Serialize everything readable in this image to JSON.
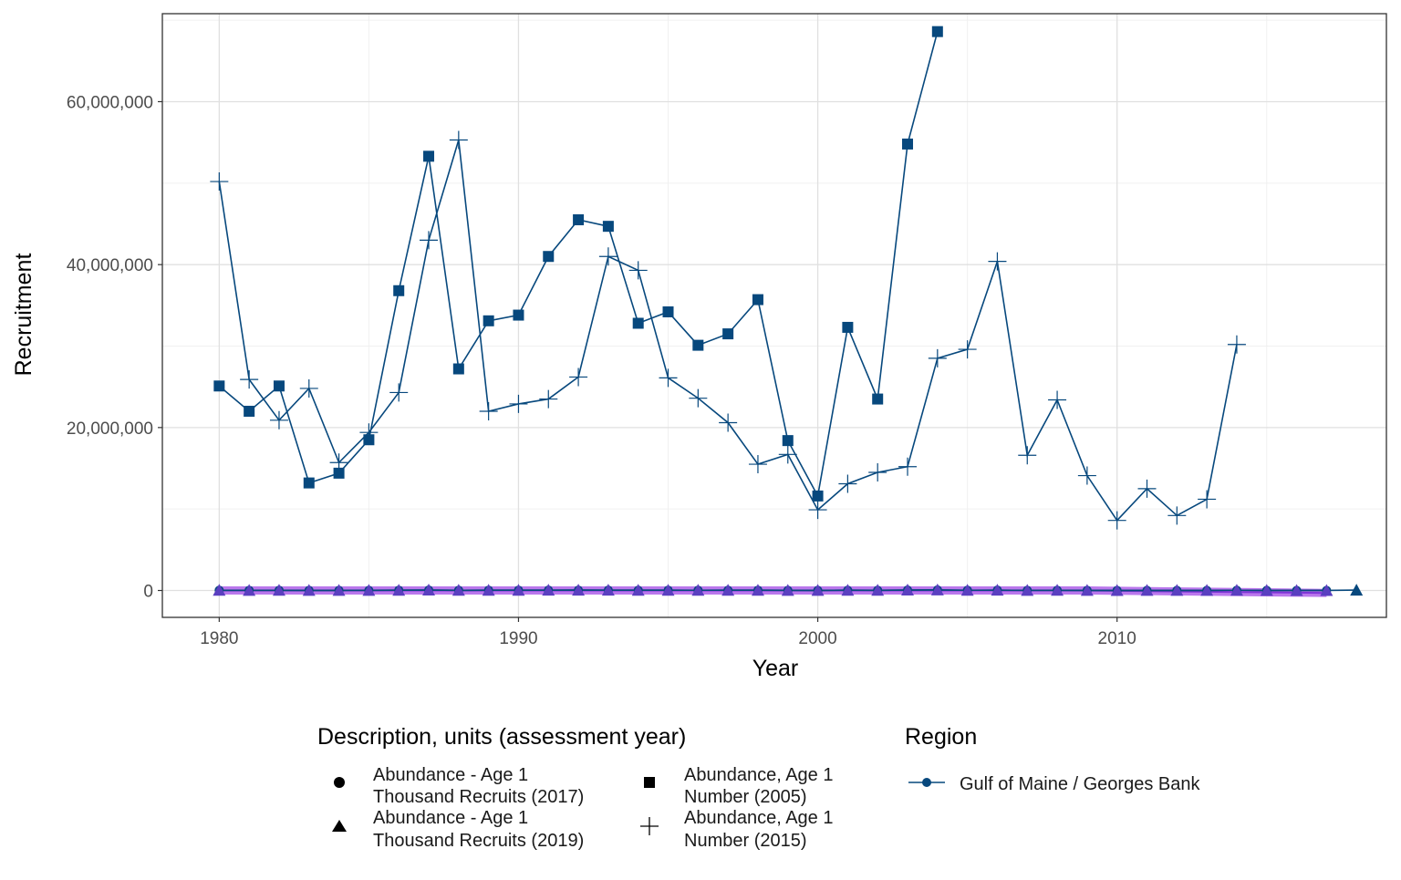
{
  "chart_data": {
    "type": "line",
    "title": "",
    "xlabel": "Year",
    "ylabel": "Recruitment",
    "xlim": [
      1978.1,
      2019.0
    ],
    "ylim": [
      -3300000,
      70800000
    ],
    "grid": true,
    "x_ticks": [
      1980,
      1990,
      2000,
      2010
    ],
    "x_tick_labels": [
      "1980",
      "1990",
      "2000",
      "2010"
    ],
    "y_ticks": [
      0,
      20000000,
      40000000,
      60000000
    ],
    "y_tick_labels": [
      "0",
      "20,000,000",
      "40,000,000",
      "60,000,000"
    ],
    "legend_placement": "bottom",
    "colors": {
      "series_line": "#07487d",
      "ribbon_fill": "#a349e6",
      "ribbon_line": "#7f35d6",
      "triangle_fill": "#5a3fc0",
      "panel_border": "#333333",
      "grid_major": "#e0e0e0",
      "grid_minor": "#f0f0f0",
      "axis_text": "#4d4d4d",
      "title_text": "#000000",
      "legend_text": "#1a1a1a"
    },
    "series": [
      {
        "marker": "square",
        "x": [
          1980,
          1981,
          1982,
          1983,
          1984,
          1985,
          1986,
          1987,
          1988,
          1989,
          1990,
          1991,
          1992,
          1993,
          1994,
          1995,
          1996,
          1997,
          1998,
          1999,
          2000,
          2001,
          2002,
          2003,
          2004
        ],
        "values": [
          25100000,
          22000000,
          25100000,
          13200000,
          14400000,
          18500000,
          36800000,
          53300000,
          27200000,
          33100000,
          33800000,
          41000000,
          45500000,
          44700000,
          32800000,
          34200000,
          30100000,
          31500000,
          35700000,
          18400000,
          11600000,
          32300000,
          23500000,
          54800000,
          68600000
        ]
      },
      {
        "marker": "plus",
        "x": [
          1980,
          1981,
          1982,
          1983,
          1984,
          1985,
          1986,
          1987,
          1988,
          1989,
          1990,
          1991,
          1992,
          1993,
          1994,
          1995,
          1996,
          1997,
          1998,
          1999,
          2000,
          2001,
          2002,
          2003,
          2004,
          2005,
          2006,
          2007,
          2008,
          2009,
          2010,
          2011,
          2012,
          2013,
          2014
        ],
        "values": [
          50200000,
          25900000,
          20900000,
          24800000,
          15700000,
          19400000,
          24300000,
          43000000,
          55300000,
          22000000,
          22900000,
          23500000,
          26200000,
          41000000,
          39300000,
          26100000,
          23600000,
          20600000,
          15500000,
          16700000,
          9900000,
          13100000,
          14500000,
          15200000,
          28500000,
          29600000,
          40400000,
          16600000,
          23400000,
          14100000,
          8600000,
          12500000,
          9200000,
          11200000,
          30200000
        ]
      },
      {
        "marker": "circle",
        "x": [
          1980,
          1981,
          1982,
          1983,
          1984,
          1985,
          1986,
          1987,
          1988,
          1989,
          1990,
          1991,
          1992,
          1993,
          1994,
          1995,
          1996,
          1997,
          1998,
          1999,
          2000,
          2001,
          2002,
          2003,
          2004,
          2005,
          2006,
          2007,
          2008,
          2009,
          2010,
          2011,
          2012,
          2013,
          2014,
          2015,
          2016,
          2017
        ],
        "values": [
          25100,
          22000,
          25100,
          13200,
          14400,
          18500,
          36800,
          53300,
          27200,
          33100,
          33800,
          41000,
          45500,
          44700,
          32800,
          34200,
          30100,
          31500,
          35700,
          18400,
          11600,
          32300,
          23500,
          54800,
          68600,
          29600,
          40400,
          16600,
          23400,
          14100,
          8600,
          12500,
          9200,
          11200,
          30200,
          11000,
          9000,
          8000
        ]
      },
      {
        "marker": "triangle",
        "x": [
          1980,
          1981,
          1982,
          1983,
          1984,
          1985,
          1986,
          1987,
          1988,
          1989,
          1990,
          1991,
          1992,
          1993,
          1994,
          1995,
          1996,
          1997,
          1998,
          1999,
          2000,
          2001,
          2002,
          2003,
          2004,
          2005,
          2006,
          2007,
          2008,
          2009,
          2010,
          2011,
          2012,
          2013,
          2014,
          2015,
          2016,
          2017,
          2018
        ],
        "values": [
          25100,
          22000,
          25100,
          13200,
          14400,
          18500,
          36800,
          53300,
          27200,
          33100,
          33800,
          41000,
          45500,
          44700,
          32800,
          34200,
          30100,
          31500,
          35700,
          18400,
          11600,
          32300,
          23500,
          54800,
          68600,
          29600,
          40400,
          16600,
          23400,
          14100,
          8600,
          12500,
          9200,
          11200,
          30200,
          11000,
          9000,
          8000,
          46000
        ]
      }
    ],
    "ribbon": {
      "x": [
        1980,
        2009,
        2017
      ],
      "upper": [
        500000,
        500000,
        200000
      ],
      "lower": [
        -500000,
        -500000,
        -800000
      ]
    },
    "legend": {
      "shape_title": "Description, units (assessment year)",
      "shape_entries": [
        {
          "marker": "circle",
          "line1": "Abundance - Age 1",
          "line2": "Thousand Recruits (2017)"
        },
        {
          "marker": "triangle",
          "line1": "Abundance - Age 1",
          "line2": "Thousand Recruits (2019)"
        },
        {
          "marker": "square",
          "line1": "Abundance, Age 1",
          "line2": "Number (2005)"
        },
        {
          "marker": "plus",
          "line1": "Abundance, Age 1",
          "line2": "Number (2015)"
        }
      ],
      "color_title": "Region",
      "color_entries": [
        {
          "label": "Gulf of Maine / Georges Bank"
        }
      ]
    }
  }
}
